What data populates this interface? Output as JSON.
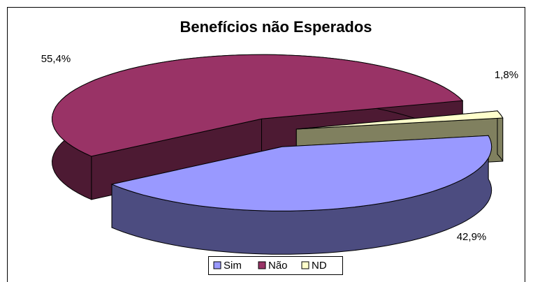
{
  "chart_data": {
    "type": "pie3d",
    "title": "Benefícios não Esperados",
    "categories": [
      "Sim",
      "Não",
      "ND"
    ],
    "values": [
      42.9,
      55.4,
      1.8
    ],
    "value_labels": [
      "42,9%",
      "55,4%",
      "1,8%"
    ],
    "colors": [
      "#9999ff",
      "#993366",
      "#ffffcc"
    ],
    "side_colors": [
      "#4c4c80",
      "#4d1a33",
      "#80805f"
    ],
    "legend": "bottom"
  }
}
